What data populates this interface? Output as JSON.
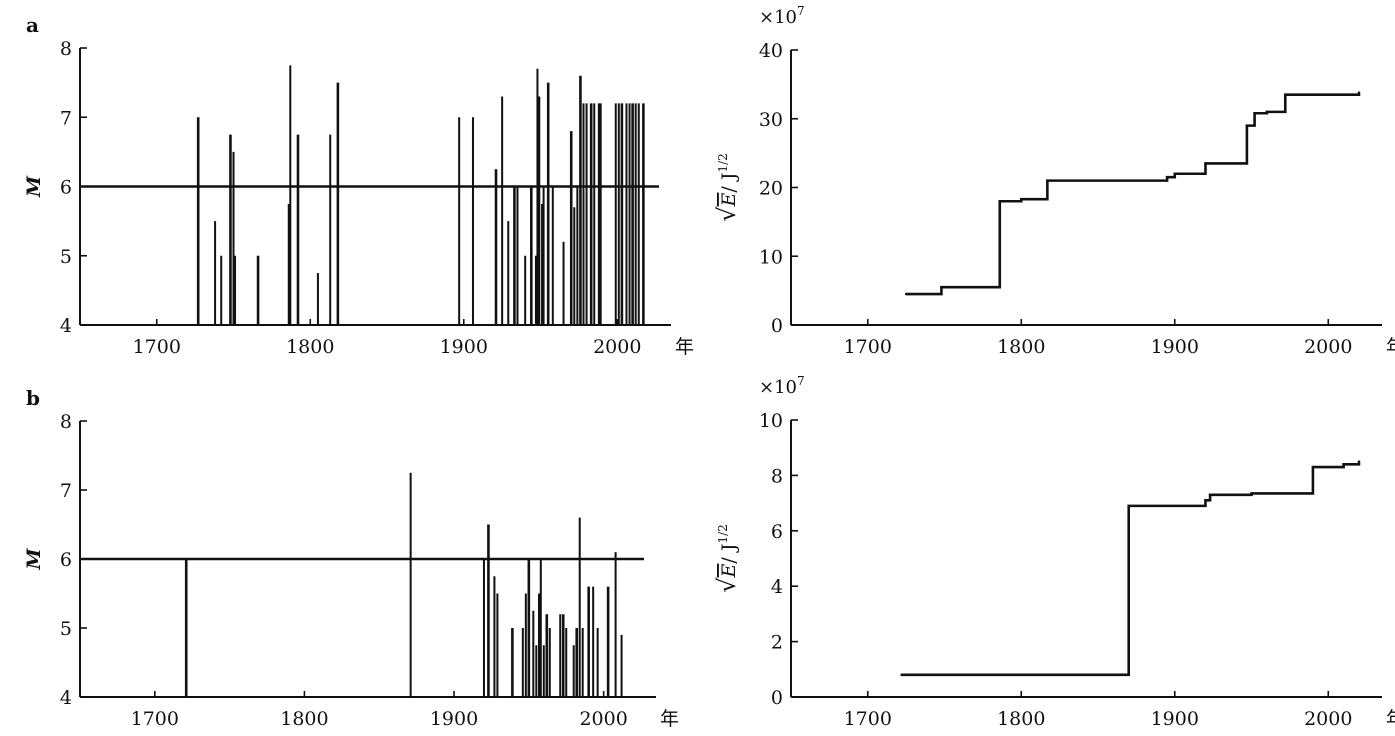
{
  "chart_data": [
    {
      "id": "a-left",
      "panel_label": "a",
      "type": "bar",
      "ylabel": "M",
      "x_unit_label": "年",
      "xlim": [
        1650,
        2035
      ],
      "ylim": [
        4,
        8
      ],
      "x_ticks": [
        1700,
        1800,
        1900,
        2000
      ],
      "y_ticks": [
        4,
        5,
        6,
        7,
        8
      ],
      "threshold": 6,
      "x": [
        1727,
        1738,
        1742,
        1748,
        1750,
        1751,
        1766,
        1786,
        1787,
        1792,
        1805,
        1813,
        1818,
        1897,
        1906,
        1921,
        1925,
        1929,
        1933,
        1935,
        1940,
        1944,
        1947,
        1948,
        1949,
        1951,
        1952,
        1955,
        1958,
        1965,
        1970,
        1972,
        1974,
        1976,
        1978,
        1980,
        1983,
        1985,
        1988,
        1989,
        1999,
        2001,
        2003,
        2006,
        2008,
        2010,
        2012,
        2014,
        2017
      ],
      "values": [
        7.0,
        5.5,
        5.0,
        6.75,
        6.5,
        5.0,
        5.0,
        5.75,
        7.75,
        6.75,
        4.75,
        6.75,
        7.5,
        7.0,
        7.0,
        6.25,
        7.3,
        5.5,
        6.0,
        6.0,
        5.0,
        6.0,
        5.0,
        7.7,
        7.3,
        5.75,
        6.0,
        7.5,
        6.0,
        5.2,
        6.8,
        5.7,
        6.0,
        7.6,
        7.2,
        7.2,
        7.2,
        7.2,
        7.2,
        7.2,
        7.2,
        7.2,
        7.2,
        7.2,
        7.2,
        7.2,
        7.2,
        7.2,
        7.2
      ]
    },
    {
      "id": "a-right",
      "type": "line",
      "step": true,
      "multiplier_label": "×10",
      "multiplier_exp": "7",
      "ylabel_parts": [
        "√",
        "E",
        "/ J",
        "1/2"
      ],
      "x_unit_label": "年",
      "xlim": [
        1650,
        2035
      ],
      "ylim": [
        0,
        40
      ],
      "x_ticks": [
        1700,
        1800,
        1900,
        2000
      ],
      "y_ticks": [
        0,
        10,
        20,
        30,
        40
      ],
      "x": [
        1725,
        1748,
        1786,
        1800,
        1817,
        1895,
        1900,
        1920,
        1947,
        1952,
        1960,
        1972,
        2020
      ],
      "values": [
        4.5,
        5.5,
        18,
        18.3,
        21,
        21.5,
        22,
        23.5,
        29,
        30.8,
        31,
        33.5,
        33.8
      ]
    },
    {
      "id": "b-left",
      "panel_label": "b",
      "type": "bar",
      "ylabel": "M",
      "x_unit_label": "年",
      "xlim": [
        1650,
        2035
      ],
      "ylim": [
        4,
        8
      ],
      "x_ticks": [
        1700,
        1800,
        1900,
        2000
      ],
      "y_ticks": [
        4,
        5,
        6,
        7,
        8
      ],
      "threshold": 6,
      "x": [
        1721,
        1871,
        1920,
        1923,
        1927,
        1929,
        1939,
        1946,
        1948,
        1950,
        1953,
        1955,
        1957,
        1958,
        1960,
        1962,
        1964,
        1971,
        1973,
        1975,
        1980,
        1982,
        1984,
        1986,
        1990,
        1993,
        1996,
        2003,
        2008,
        2012
      ],
      "values": [
        6.0,
        7.25,
        6.0,
        6.5,
        5.75,
        5.5,
        5.0,
        5.0,
        5.5,
        6.0,
        5.25,
        4.75,
        5.5,
        6.0,
        4.75,
        5.2,
        5.0,
        5.2,
        5.2,
        5.0,
        4.75,
        5.0,
        6.6,
        5.0,
        5.6,
        5.6,
        5.0,
        5.6,
        6.1,
        4.9
      ]
    },
    {
      "id": "b-right",
      "type": "line",
      "step": true,
      "multiplier_label": "×10",
      "multiplier_exp": "7",
      "ylabel_parts": [
        "√",
        "E",
        "/ J",
        "1/2"
      ],
      "x_unit_label": "年",
      "xlim": [
        1650,
        2035
      ],
      "ylim": [
        0,
        10
      ],
      "x_ticks": [
        1700,
        1800,
        1900,
        2000
      ],
      "y_ticks": [
        0,
        2,
        4,
        6,
        8,
        10
      ],
      "x": [
        1722,
        1870,
        1920,
        1923,
        1950,
        1990,
        2010,
        2020
      ],
      "values": [
        0.8,
        6.9,
        7.1,
        7.3,
        7.35,
        8.3,
        8.4,
        8.5
      ]
    }
  ]
}
